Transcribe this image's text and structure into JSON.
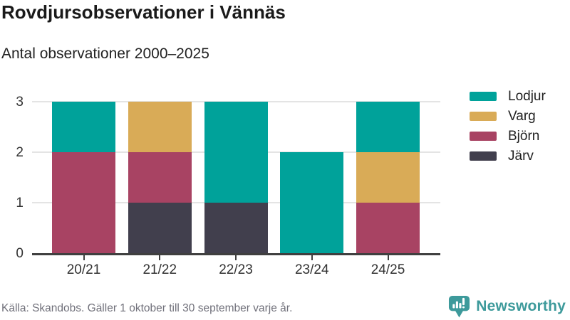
{
  "header": {
    "title": "Rovdjursobservationer i Vännäs",
    "subtitle": "Antal observationer 2000–2025"
  },
  "footer": {
    "source": "Källa: Skandobs. Gäller 1 oktober till 30 september varje år.",
    "brand": "Newsworthy",
    "brand_color": "#3d9a9b"
  },
  "chart_data": {
    "type": "bar",
    "stacked": true,
    "title": "Rovdjursobservationer i Vännäs",
    "subtitle": "Antal observationer 2000–2025",
    "categories": [
      "20/21",
      "21/22",
      "22/23",
      "23/24",
      "24/25"
    ],
    "series": [
      {
        "name": "Lodjur",
        "color": "#00a29a",
        "values": [
          1,
          0,
          2,
          2,
          1
        ]
      },
      {
        "name": "Varg",
        "color": "#d9ab57",
        "values": [
          0,
          1,
          0,
          0,
          1
        ]
      },
      {
        "name": "Björn",
        "color": "#a84363",
        "values": [
          2,
          1,
          0,
          0,
          1
        ]
      },
      {
        "name": "Järv",
        "color": "#413f4d",
        "values": [
          0,
          1,
          1,
          0,
          0
        ]
      }
    ],
    "stack_order_bottom_to_top": [
      "Järv",
      "Björn",
      "Varg",
      "Lodjur"
    ],
    "totals_per_category": [
      3,
      3,
      3,
      2,
      3
    ],
    "xlabel": "",
    "ylabel": "",
    "yticks": [
      0,
      1,
      2,
      3
    ],
    "ylim": [
      0,
      3
    ],
    "grid": true,
    "grid_color": "#e4e4e4",
    "axis_color": "#3f3f3f",
    "legend_position": "right"
  }
}
